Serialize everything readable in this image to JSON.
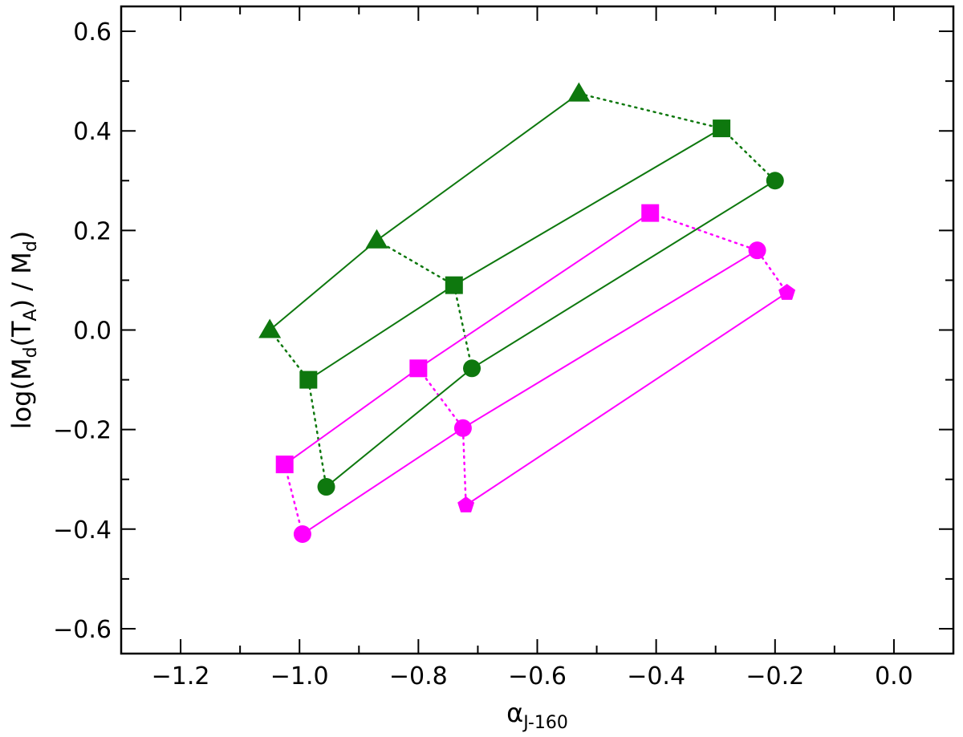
{
  "chart_data": {
    "type": "scatter",
    "xlabel": {
      "main": "α",
      "sub": "J-160"
    },
    "ylabel": {
      "pre": "log(M",
      "sub1": "d",
      "mid": "(T",
      "sub2": "A",
      "post": ") / M",
      "sub3": "d",
      "end": ")"
    },
    "xlim": [
      -1.3,
      0.1
    ],
    "ylim": [
      -0.65,
      0.65
    ],
    "x_ticks": [
      -1.2,
      -1.0,
      -0.8,
      -0.6,
      -0.4,
      -0.2,
      0.0
    ],
    "x_tick_labels": [
      "−1.2",
      "−1.0",
      "−0.8",
      "−0.6",
      "−0.4",
      "−0.2",
      "0.0"
    ],
    "y_ticks": [
      -0.6,
      -0.4,
      -0.2,
      0.0,
      0.2,
      0.4,
      0.6
    ],
    "y_tick_labels": [
      "−0.6",
      "−0.4",
      "−0.2",
      "0.0",
      "0.2",
      "0.4",
      "0.6"
    ],
    "grid": false,
    "colors": {
      "green": "#0e780e",
      "magenta": "#ff00ff"
    },
    "series": [
      {
        "color": "green",
        "marker": "triangle",
        "points": [
          {
            "x": -1.05,
            "y": 0.0
          },
          {
            "x": -0.87,
            "y": 0.18
          },
          {
            "x": -0.53,
            "y": 0.475
          }
        ]
      },
      {
        "color": "green",
        "marker": "square",
        "points": [
          {
            "x": -0.985,
            "y": -0.1
          },
          {
            "x": -0.74,
            "y": 0.09
          },
          {
            "x": -0.29,
            "y": 0.405
          }
        ]
      },
      {
        "color": "green",
        "marker": "circle",
        "points": [
          {
            "x": -0.955,
            "y": -0.315
          },
          {
            "x": -0.71,
            "y": -0.077
          },
          {
            "x": -0.2,
            "y": 0.3
          }
        ]
      },
      {
        "color": "magenta",
        "marker": "square",
        "points": [
          {
            "x": -1.025,
            "y": -0.27
          },
          {
            "x": -0.8,
            "y": -0.077
          },
          {
            "x": -0.41,
            "y": 0.235
          }
        ]
      },
      {
        "color": "magenta",
        "marker": "circle",
        "points": [
          {
            "x": -0.995,
            "y": -0.41
          },
          {
            "x": -0.725,
            "y": -0.197
          },
          {
            "x": -0.23,
            "y": 0.16
          }
        ]
      },
      {
        "color": "magenta",
        "marker": "pentagon",
        "points": [
          {
            "x": -0.72,
            "y": -0.352
          },
          {
            "x": -0.18,
            "y": 0.075
          }
        ]
      }
    ],
    "dotted_connectors": [
      {
        "color": "green",
        "points": [
          {
            "x": -1.05,
            "y": 0.0
          },
          {
            "x": -0.985,
            "y": -0.1
          },
          {
            "x": -0.955,
            "y": -0.315
          }
        ]
      },
      {
        "color": "green",
        "points": [
          {
            "x": -0.87,
            "y": 0.18
          },
          {
            "x": -0.74,
            "y": 0.09
          },
          {
            "x": -0.71,
            "y": -0.077
          }
        ]
      },
      {
        "color": "green",
        "points": [
          {
            "x": -0.53,
            "y": 0.475
          },
          {
            "x": -0.29,
            "y": 0.405
          },
          {
            "x": -0.2,
            "y": 0.3
          }
        ]
      },
      {
        "color": "magenta",
        "points": [
          {
            "x": -1.025,
            "y": -0.27
          },
          {
            "x": -0.995,
            "y": -0.41
          }
        ]
      },
      {
        "color": "magenta",
        "points": [
          {
            "x": -0.8,
            "y": -0.077
          },
          {
            "x": -0.725,
            "y": -0.197
          },
          {
            "x": -0.72,
            "y": -0.352
          }
        ]
      },
      {
        "color": "magenta",
        "points": [
          {
            "x": -0.41,
            "y": 0.235
          },
          {
            "x": -0.23,
            "y": 0.16
          },
          {
            "x": -0.18,
            "y": 0.075
          }
        ]
      }
    ]
  }
}
